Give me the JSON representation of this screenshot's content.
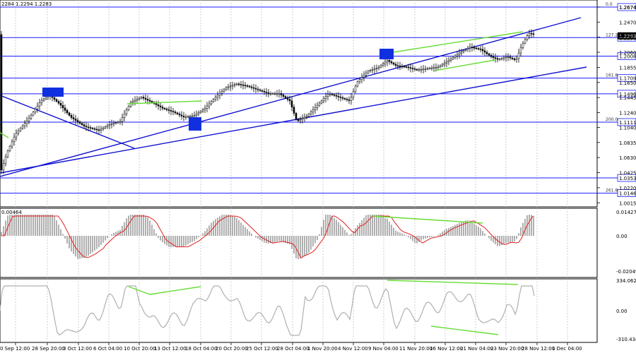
{
  "window": {
    "ohlc_header": "2284 1.2294 1.2283"
  },
  "colors": {
    "background": "#ffffff",
    "grid": "#c0c0c0",
    "price_line": "#1a1aff",
    "trend_line": "#1010d0",
    "divergence": "#66dd33",
    "macd_hist": "#b0b0b0",
    "macd_signal": "#e02020",
    "cci_line": "#b0b0b0",
    "marker": "#1030e0",
    "candle": "#000000"
  },
  "main_chart": {
    "axis_labels": [
      "1.2674",
      "1.2470",
      "1.2265",
      "1.2060",
      "1.1855",
      "1.1650",
      "1.1445",
      "1.1240",
      "1.1040",
      "1.0835",
      "1.0630",
      "1.0425",
      "1.0220",
      "1.0015"
    ],
    "levels": [
      {
        "price": 1.2674,
        "label": "1.2674",
        "fib": "0.0"
      },
      {
        "price": 1.2259,
        "label": "1.2259",
        "fib": "127.2"
      },
      {
        "price": 1.2008,
        "label": "1.2008",
        "fib": ""
      },
      {
        "price": 1.1709,
        "label": "1.1709",
        "fib": "161.8"
      },
      {
        "price": 1.1496,
        "label": "1.1496",
        "fib": ""
      },
      {
        "price": 1.1111,
        "label": "1.1111",
        "fib": "200.0"
      },
      {
        "price": 1.0353,
        "label": "1.0353",
        "fib": ""
      },
      {
        "price": 1.0146,
        "label": "1.0146",
        "fib": "261.8"
      }
    ],
    "current_price": "1.2283"
  },
  "macd": {
    "title": "0.00464",
    "axis_labels": [
      "0.01427",
      "0.00",
      "-0.02049"
    ]
  },
  "cci": {
    "axis_labels": [
      "334.0624",
      "0.00",
      "-310.434"
    ]
  },
  "time_axis": [
    "0 Sep 12:00",
    "28 Sep 20:00",
    "3 Oct 12:00",
    "6 Oct 04:00",
    "10 Oct 20:00",
    "13 Oct 12:00",
    "18 Oct 04:00",
    "20 Oct 20:00",
    "25 Oct 12:00",
    "28 Oct 04:00",
    "1 Nov 20:00",
    "4 Nov 12:00",
    "9 Nov 04:00",
    "11 Nov 20:00",
    "16 Nov 12:00",
    "21 Nov 04:00",
    "23 Nov 20:00",
    "28 Nov 12:00",
    "1 Dec 04:00"
  ]
}
